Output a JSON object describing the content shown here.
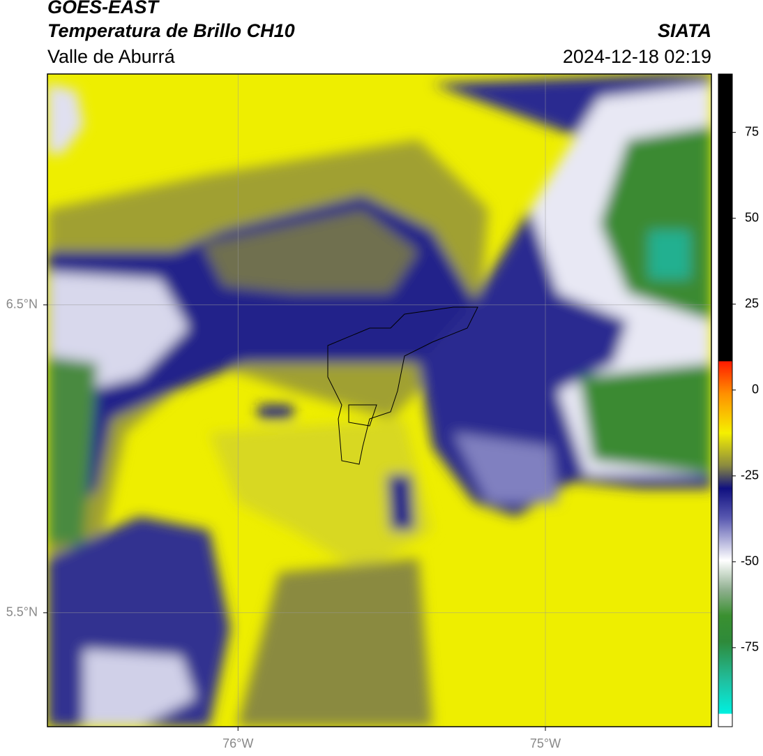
{
  "header": {
    "title": "GOES-EAST",
    "subtitle": "Temperatura de Brillo CH10",
    "region": "Valle de Aburrá",
    "source": "SIATA",
    "timestamp": "2024-12-18 02:19"
  },
  "map": {
    "xlim": [
      -76.62,
      -74.46
    ],
    "ylim": [
      5.13,
      7.25
    ],
    "xticks": [
      {
        "value": -76,
        "label": "76°W"
      },
      {
        "value": -75,
        "label": "75°W"
      }
    ],
    "yticks": [
      {
        "value": 6.5,
        "label": "6.5°N"
      },
      {
        "value": 5.5,
        "label": "5.5°N"
      }
    ],
    "grid": true
  },
  "colorbar": {
    "lim": [
      -98,
      92
    ],
    "ticks": [
      75,
      50,
      25,
      0,
      -25,
      -50,
      -75
    ]
  }
}
